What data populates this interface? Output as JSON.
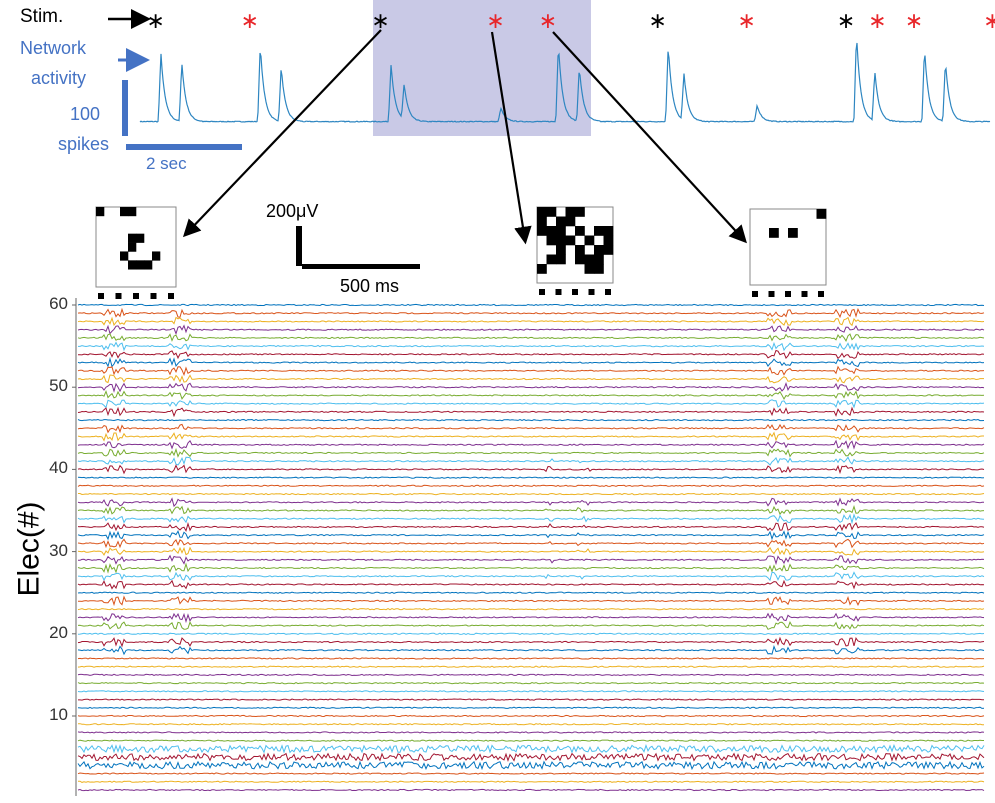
{
  "chart_data": {
    "type": "line",
    "title": "",
    "top_panel": {
      "stim_label": "Stim.",
      "network_label_line1": "Network",
      "network_label_line2": "activity",
      "scale_y_value": "100",
      "scale_y_unit": "spikes",
      "scale_x": "2 sec",
      "stim_events_sec": [
        {
          "t": 0.3,
          "type": "black"
        },
        {
          "t": 2.1,
          "type": "red"
        },
        {
          "t": 4.6,
          "type": "black"
        },
        {
          "t": 6.8,
          "type": "red"
        },
        {
          "t": 7.8,
          "type": "red"
        },
        {
          "t": 9.9,
          "type": "black"
        },
        {
          "t": 11.6,
          "type": "red"
        },
        {
          "t": 13.5,
          "type": "black"
        },
        {
          "t": 14.1,
          "type": "red"
        },
        {
          "t": 14.8,
          "type": "red"
        },
        {
          "t": 16.3,
          "type": "red"
        }
      ],
      "bursts": [
        {
          "t": 0.4,
          "peak": 125
        },
        {
          "t": 0.8,
          "peak": 108
        },
        {
          "t": 2.3,
          "peak": 140
        },
        {
          "t": 2.7,
          "peak": 100
        },
        {
          "t": 4.8,
          "peak": 105
        },
        {
          "t": 5.05,
          "peak": 65
        },
        {
          "t": 6.9,
          "peak": 25
        },
        {
          "t": 8.0,
          "peak": 142
        },
        {
          "t": 8.4,
          "peak": 100
        },
        {
          "t": 10.1,
          "peak": 140
        },
        {
          "t": 10.4,
          "peak": 85
        },
        {
          "t": 11.8,
          "peak": 30
        },
        {
          "t": 13.7,
          "peak": 160
        },
        {
          "t": 14.05,
          "peak": 90
        },
        {
          "t": 15.0,
          "peak": 135
        },
        {
          "t": 15.4,
          "peak": 110
        }
      ],
      "highlight_window_sec": [
        4.4,
        8.6
      ]
    },
    "stim_patterns": [
      {
        "grid": [
          "1001100000",
          "0000000000",
          "0000000000",
          "0000110000",
          "0000100000",
          "0001000100",
          "0000111000",
          "0000000000",
          "0000000000"
        ]
      },
      {
        "grid": [
          "11011000",
          "10110000",
          "11101011",
          "01110101",
          "00101011",
          "01101110",
          "10000110",
          "00000000"
        ]
      },
      {
        "grid": [
          "00000001",
          "00000000",
          "00101000",
          "00000000",
          "00000000",
          "00000000",
          "00000000",
          "00000000"
        ]
      }
    ],
    "pattern_dots": 5,
    "raster_scale_y": "200μV",
    "raster_scale_x": "500 ms",
    "ylabel": "Elec(#)",
    "yticks": [
      "10",
      "20",
      "30",
      "40",
      "50",
      "60"
    ],
    "ylim": [
      1,
      60
    ],
    "n_electrodes": 60,
    "series_colors": [
      "#0072BD",
      "#D95319",
      "#EDB120",
      "#7E2F8E",
      "#77AC30",
      "#4DBEEE",
      "#A2142F"
    ],
    "active_electrodes": [
      18,
      19,
      21,
      22,
      24,
      26,
      27,
      28,
      29,
      30,
      31,
      32,
      33,
      34,
      35,
      36,
      40,
      41,
      42,
      43,
      44,
      45,
      47,
      48,
      49,
      50,
      51,
      52,
      53,
      54,
      55,
      56,
      57,
      58,
      59
    ],
    "noisy_electrodes": [
      4,
      5,
      6
    ]
  }
}
